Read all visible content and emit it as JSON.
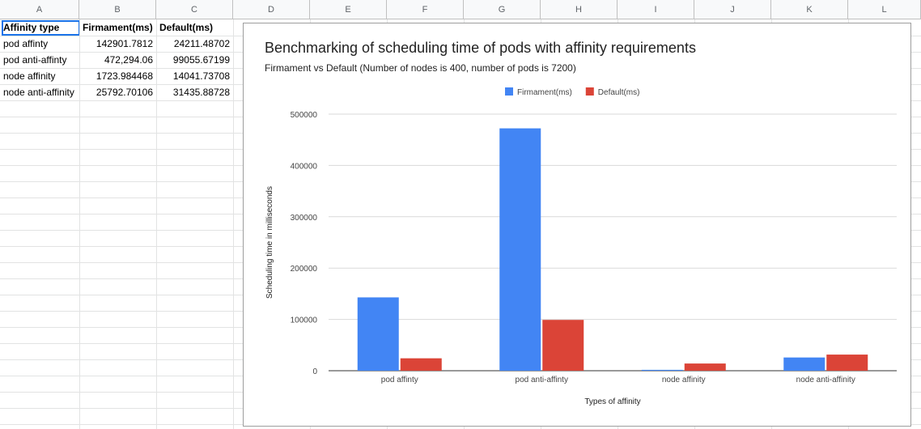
{
  "spreadsheet": {
    "columns": [
      "A",
      "B",
      "C",
      "D",
      "E",
      "F",
      "G",
      "H",
      "I",
      "J",
      "K",
      "L"
    ],
    "headers": [
      "Affinity type",
      "Firmament(ms)",
      "Default(ms)"
    ],
    "rows": [
      [
        "pod affinty",
        "142901.7812",
        "24211.48702"
      ],
      [
        "pod anti-affinty",
        "472,294.06",
        "99055.67199"
      ],
      [
        "node affinity",
        "1723.984468",
        "14041.73708"
      ],
      [
        "node anti-affinity",
        "25792.70106",
        "31435.88728"
      ]
    ]
  },
  "chart": {
    "title": "Benchmarking of scheduling time of pods with affinity requirements",
    "subtitle": "Firmament vs Default (Number of nodes is 400, number of pods is 7200)"
  },
  "chart_data": {
    "type": "bar",
    "title": "Benchmarking of scheduling time of pods with affinity requirements",
    "subtitle": "Firmament vs Default (Number of nodes is 400, number of pods is 7200)",
    "categories": [
      "pod affinty",
      "pod anti-affinty",
      "node affinity",
      "node anti-affinity"
    ],
    "series": [
      {
        "name": "Firmament(ms)",
        "color": "#4285f4",
        "values": [
          142901.7812,
          472294.06,
          1723.984468,
          25792.70106
        ]
      },
      {
        "name": "Default(ms)",
        "color": "#db4437",
        "values": [
          24211.48702,
          99055.67199,
          14041.73708,
          31435.88728
        ]
      }
    ],
    "xlabel": "Types of affinity",
    "ylabel": "Scheduling time in milliseconds",
    "ylim": [
      0,
      500000
    ],
    "yticks": [
      0,
      100000,
      200000,
      300000,
      400000,
      500000
    ],
    "ytick_labels": [
      "0",
      "100000",
      "200000",
      "300000",
      "400000",
      "500000"
    ],
    "legend_position": "top",
    "grid": true
  }
}
